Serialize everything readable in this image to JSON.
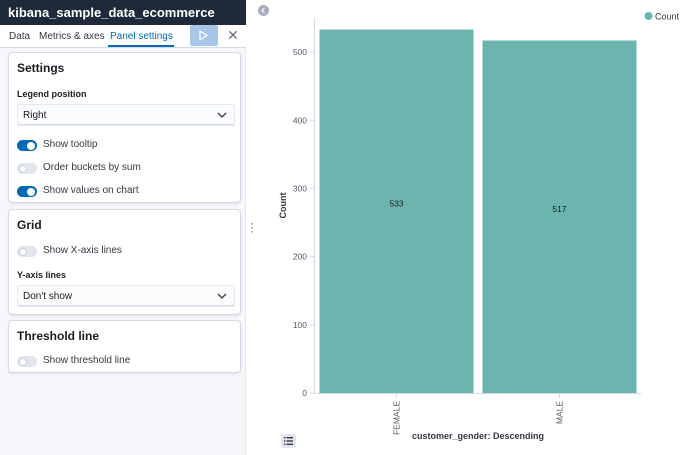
{
  "header": {
    "title": "kibana_sample_data_ecommerce"
  },
  "tabs": [
    {
      "label": "Data"
    },
    {
      "label": "Metrics & axes"
    },
    {
      "label": "Panel settings"
    }
  ],
  "settings": {
    "title": "Settings",
    "legend_position_label": "Legend position",
    "legend_position_value": "Right",
    "show_tooltip": {
      "label": "Show tooltip",
      "on": true
    },
    "order_buckets": {
      "label": "Order buckets by sum",
      "on": false
    },
    "show_values": {
      "label": "Show values on chart",
      "on": true
    }
  },
  "grid": {
    "title": "Grid",
    "show_x_lines": {
      "label": "Show X-axis lines",
      "on": false
    },
    "y_lines_label": "Y-axis lines",
    "y_lines_value": "Don't show"
  },
  "threshold": {
    "title": "Threshold line",
    "show_threshold": {
      "label": "Show threshold line",
      "on": false
    }
  },
  "colors": {
    "accent": "#006bb4",
    "bar": "#6cb5ae",
    "title_bar": "#1e2a3a"
  },
  "icons": {
    "run": "play-icon",
    "close": "close-icon",
    "collapse": "chevron-left-icon",
    "legend_toggle": "list-icon",
    "caret": "chevron-down-icon"
  },
  "chart_data": {
    "type": "bar",
    "categories": [
      "FEMALE",
      "MALE"
    ],
    "series": [
      {
        "name": "Count",
        "values": [
          533,
          517
        ]
      }
    ],
    "xlabel": "customer_gender: Descending",
    "ylabel": "Count",
    "ylim": [
      0,
      550
    ],
    "yticks": [
      0,
      100,
      200,
      300,
      400,
      500
    ],
    "legend": "top-right",
    "data_labels": true,
    "grid": false
  }
}
